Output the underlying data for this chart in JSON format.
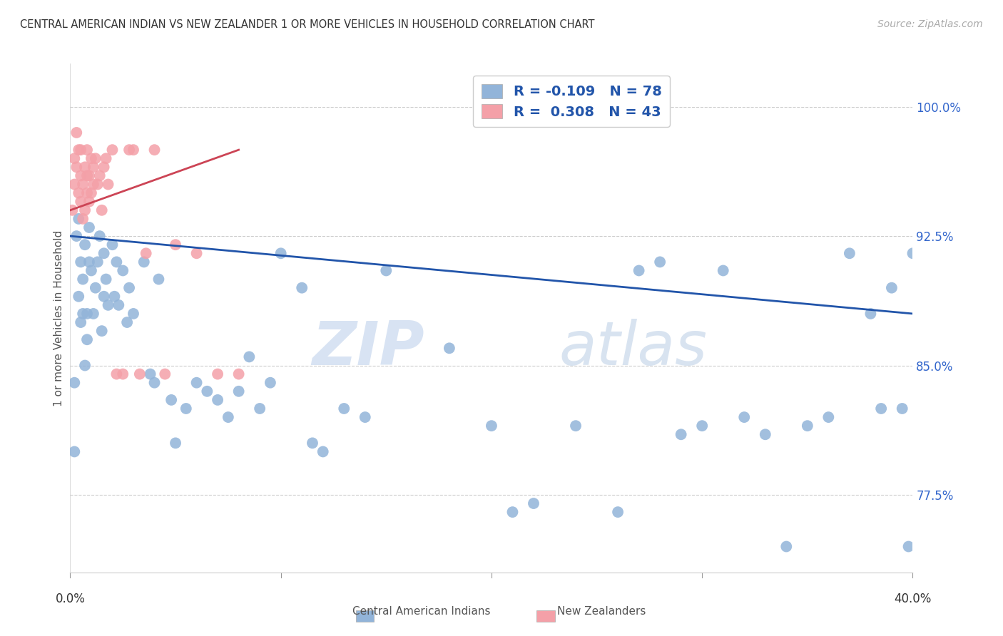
{
  "title": "CENTRAL AMERICAN INDIAN VS NEW ZEALANDER 1 OR MORE VEHICLES IN HOUSEHOLD CORRELATION CHART",
  "source": "Source: ZipAtlas.com",
  "ylabel": "1 or more Vehicles in Household",
  "xlim": [
    0.0,
    0.4
  ],
  "ylim": [
    73.0,
    102.5
  ],
  "legend_blue_R": "-0.109",
  "legend_blue_N": "78",
  "legend_pink_R": "0.308",
  "legend_pink_N": "43",
  "blue_color": "#92b4d9",
  "pink_color": "#f4a0a8",
  "blue_line_color": "#2255aa",
  "pink_line_color": "#cc4455",
  "blue_x": [
    0.002,
    0.002,
    0.003,
    0.004,
    0.004,
    0.005,
    0.005,
    0.006,
    0.006,
    0.007,
    0.007,
    0.008,
    0.008,
    0.009,
    0.009,
    0.01,
    0.011,
    0.012,
    0.013,
    0.014,
    0.015,
    0.016,
    0.016,
    0.017,
    0.018,
    0.02,
    0.021,
    0.022,
    0.023,
    0.025,
    0.027,
    0.028,
    0.03,
    0.035,
    0.038,
    0.04,
    0.042,
    0.048,
    0.05,
    0.055,
    0.06,
    0.065,
    0.07,
    0.075,
    0.08,
    0.085,
    0.09,
    0.095,
    0.1,
    0.11,
    0.115,
    0.12,
    0.13,
    0.14,
    0.15,
    0.18,
    0.2,
    0.21,
    0.22,
    0.24,
    0.26,
    0.27,
    0.28,
    0.29,
    0.3,
    0.31,
    0.32,
    0.33,
    0.34,
    0.35,
    0.36,
    0.37,
    0.38,
    0.385,
    0.39,
    0.395,
    0.398,
    0.4
  ],
  "blue_y": [
    80.0,
    84.0,
    92.5,
    89.0,
    93.5,
    87.5,
    91.0,
    88.0,
    90.0,
    85.0,
    92.0,
    86.5,
    88.0,
    91.0,
    93.0,
    90.5,
    88.0,
    89.5,
    91.0,
    92.5,
    87.0,
    89.0,
    91.5,
    90.0,
    88.5,
    92.0,
    89.0,
    91.0,
    88.5,
    90.5,
    87.5,
    89.5,
    88.0,
    91.0,
    84.5,
    84.0,
    90.0,
    83.0,
    80.5,
    82.5,
    84.0,
    83.5,
    83.0,
    82.0,
    83.5,
    85.5,
    82.5,
    84.0,
    91.5,
    89.5,
    80.5,
    80.0,
    82.5,
    82.0,
    90.5,
    86.0,
    81.5,
    76.5,
    77.0,
    81.5,
    76.5,
    90.5,
    91.0,
    81.0,
    81.5,
    90.5,
    82.0,
    81.0,
    74.5,
    81.5,
    82.0,
    91.5,
    88.0,
    82.5,
    89.5,
    82.5,
    74.5,
    91.5
  ],
  "pink_x": [
    0.001,
    0.002,
    0.002,
    0.003,
    0.003,
    0.004,
    0.004,
    0.005,
    0.005,
    0.005,
    0.006,
    0.006,
    0.007,
    0.007,
    0.008,
    0.008,
    0.008,
    0.009,
    0.009,
    0.01,
    0.01,
    0.011,
    0.011,
    0.012,
    0.013,
    0.014,
    0.015,
    0.016,
    0.017,
    0.018,
    0.02,
    0.022,
    0.025,
    0.028,
    0.03,
    0.033,
    0.036,
    0.04,
    0.045,
    0.05,
    0.06,
    0.07,
    0.08
  ],
  "pink_y": [
    94.0,
    95.5,
    97.0,
    96.5,
    98.5,
    95.0,
    97.5,
    94.5,
    96.0,
    97.5,
    93.5,
    95.5,
    94.0,
    96.5,
    95.0,
    96.0,
    97.5,
    94.5,
    96.0,
    95.0,
    97.0,
    95.5,
    96.5,
    97.0,
    95.5,
    96.0,
    94.0,
    96.5,
    97.0,
    95.5,
    97.5,
    84.5,
    84.5,
    97.5,
    97.5,
    84.5,
    91.5,
    97.5,
    84.5,
    92.0,
    91.5,
    84.5,
    84.5
  ],
  "blue_trendline_x": [
    0.0,
    0.4
  ],
  "blue_trendline_y": [
    92.5,
    88.0
  ],
  "pink_trendline_x": [
    0.0,
    0.08
  ],
  "pink_trendline_y": [
    94.0,
    97.5
  ],
  "watermark_zip": "ZIP",
  "watermark_atlas": "atlas",
  "background_color": "#ffffff",
  "grid_color": "#cccccc",
  "ytick_vals": [
    77.5,
    85.0,
    92.5,
    100.0
  ],
  "ytick_labels": [
    "77.5%",
    "85.0%",
    "92.5%",
    "100.0%"
  ],
  "xtick_labels": [
    "0.0%",
    "40.0%"
  ],
  "legend_label_blue": "Central American Indians",
  "legend_label_pink": "New Zealanders"
}
